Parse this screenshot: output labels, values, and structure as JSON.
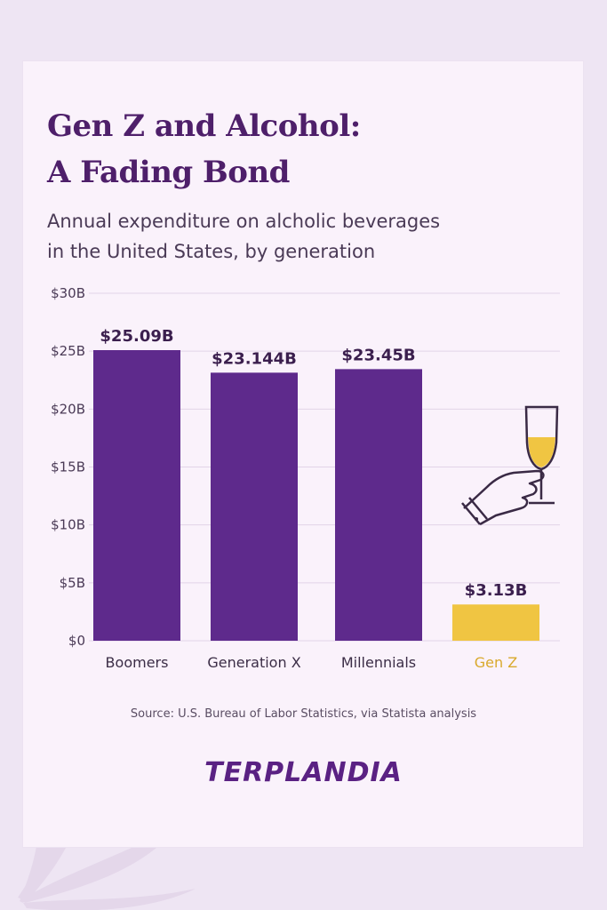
{
  "title_lines": [
    "Gen Z and Alcohol:",
    "A Fading Bond"
  ],
  "subtitle_lines": [
    "Annual expenditure on alcholic beverages",
    "in the United States, by generation"
  ],
  "chart_data": {
    "type": "bar",
    "title": "Gen Z and Alcohol: A Fading Bond",
    "subtitle": "Annual expenditure on alcholic beverages in the United States, by generation",
    "categories": [
      "Boomers",
      "Generation X",
      "Millennials",
      "Gen Z"
    ],
    "values": [
      25.09,
      23.144,
      23.45,
      3.13
    ],
    "value_labels": [
      "$25.09B",
      "$23.144B",
      "$23.45B",
      "$3.13B"
    ],
    "ylim": [
      0,
      30
    ],
    "yticks": [
      0,
      5,
      10,
      15,
      20,
      25,
      30
    ],
    "ytick_labels": [
      "$0",
      "$5B",
      "$10B",
      "$15B",
      "$20B",
      "$25B",
      "$30B"
    ],
    "xlabel": "",
    "ylabel": "",
    "grid": true,
    "colors": [
      "#5e2a8c",
      "#5e2a8c",
      "#5e2a8c",
      "#f0c542"
    ],
    "highlight_label_color": "#d9a92c",
    "label_color": "#3b1f4e"
  },
  "source": "Source:  U.S. Bureau of Labor Statistics, via Statista analysis",
  "logo_text": "TERPLANDIA",
  "icons": [
    "hand-holding-champagne-icon",
    "cannabis-leaf-icon"
  ]
}
